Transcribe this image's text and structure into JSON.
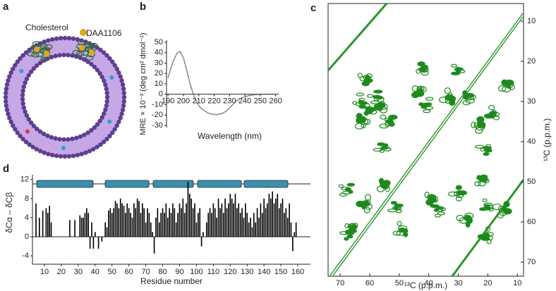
{
  "panel_labels": [
    "a",
    "b",
    "c",
    "d"
  ],
  "annotations": [
    "Cholesterol",
    "DAA1106"
  ],
  "chart_data": [
    {
      "type": "line",
      "x_label": "Wavelength (nm)",
      "y_label": "MRE × 10⁻³ (deg cm² dmol⁻¹)",
      "x": [
        190,
        192,
        194,
        196,
        198,
        200,
        202,
        204,
        206,
        208,
        210,
        212,
        214,
        216,
        218,
        220,
        222,
        224,
        226,
        228,
        230,
        232,
        234,
        236,
        238,
        240,
        242,
        244,
        246,
        248,
        250,
        252,
        254,
        256,
        258,
        260
      ],
      "values": [
        16,
        26,
        34,
        40,
        41,
        35,
        24,
        12,
        2,
        -6,
        -11,
        -14,
        -16,
        -18,
        -19,
        -19.5,
        -19.5,
        -19,
        -18,
        -16,
        -13,
        -10,
        -7,
        -5,
        -3.5,
        -2.5,
        -1.5,
        -1,
        -0.5,
        -0.3,
        0,
        0,
        0,
        0,
        0,
        0
      ],
      "color": "#555555",
      "xlim": [
        189,
        262
      ],
      "ylim": [
        -32,
        52
      ],
      "xticks": [
        190,
        200,
        210,
        220,
        230,
        240,
        250,
        260
      ],
      "yticks": [
        -30,
        -20,
        -10,
        0,
        10,
        20,
        30,
        40,
        50
      ]
    },
    {
      "type": "contour",
      "x_label": "¹³C (p.p.m.)",
      "y_label": "¹³C (p.p.m.)",
      "x": [
        63,
        60,
        62,
        58,
        61,
        56,
        55,
        54,
        43,
        40.5,
        42,
        33,
        30,
        26,
        23,
        20.5,
        18,
        13,
        68,
        66,
        61,
        51,
        49,
        39,
        36,
        30,
        27,
        20,
        21.5,
        15,
        67,
        20,
        55
      ],
      "y": [
        30,
        32,
        35,
        29,
        24,
        31,
        41.5,
        35,
        27,
        31,
        22,
        29,
        22,
        29,
        36,
        41.5,
        33,
        26,
        52,
        61,
        55.6,
        56.5,
        62,
        54,
        57,
        53,
        59,
        56,
        49.5,
        57,
        62.6,
        63.5,
        51
      ],
      "color": "#1e8a1e",
      "xlim": [
        74.1,
        7.9
      ],
      "ylim": [
        5.6,
        73.5
      ],
      "xticks": [
        70,
        60,
        50,
        40,
        30,
        20,
        10
      ],
      "yticks": [
        10,
        20,
        30,
        40,
        50,
        60,
        70
      ]
    },
    {
      "type": "bar",
      "x_label": "Residue number",
      "y_label": "δCα – δCβ",
      "x": [
        5,
        7,
        9,
        11,
        12,
        13,
        14,
        25,
        28,
        31,
        32,
        33,
        34,
        35,
        36,
        37,
        38,
        39,
        40,
        42,
        44,
        46,
        47,
        48,
        49,
        50,
        51,
        52,
        53,
        54,
        55,
        56,
        57,
        58,
        59,
        60,
        61,
        62,
        63,
        64,
        65,
        66,
        67,
        68,
        69,
        70,
        71,
        72,
        73,
        74,
        75,
        76,
        77,
        78,
        79,
        80,
        81,
        82,
        83,
        84,
        85,
        86,
        87,
        88,
        89,
        90,
        91,
        92,
        93,
        94,
        95,
        96,
        97,
        98,
        99,
        100,
        101,
        102,
        103,
        104,
        106,
        107,
        108,
        109,
        110,
        111,
        112,
        113,
        114,
        115,
        116,
        117,
        118,
        119,
        120,
        121,
        122,
        123,
        124,
        125,
        126,
        127,
        128,
        129,
        130,
        131,
        132,
        133,
        134,
        135,
        136,
        137,
        138,
        139,
        140,
        141,
        142,
        143,
        144,
        145,
        146,
        147,
        148,
        149,
        150,
        151,
        152,
        153,
        154,
        155,
        156,
        157,
        158,
        159
      ],
      "values": [
        7,
        4,
        5.5,
        6,
        5,
        6.5,
        3,
        3.5,
        3.5,
        4.5,
        4,
        4,
        5,
        6,
        5,
        -2.5,
        3,
        -2.5,
        1,
        -2.5,
        -1,
        3,
        2,
        5.5,
        6,
        5,
        6,
        7.5,
        7,
        6,
        8,
        7,
        6.5,
        5,
        7,
        6,
        5,
        4,
        7,
        6,
        8,
        7.5,
        5,
        7,
        6,
        3,
        6,
        5,
        3,
        1,
        -3.5,
        4,
        6,
        3,
        5,
        6,
        5,
        7,
        4,
        6,
        5,
        7,
        6,
        3,
        5,
        7,
        6,
        8,
        5,
        7,
        11.5,
        9,
        8,
        6,
        7,
        3,
        5,
        6,
        -2,
        1,
        3,
        5,
        6,
        5,
        7,
        6,
        4,
        8,
        6,
        7,
        5,
        8,
        6,
        7,
        9,
        8,
        7,
        9,
        6,
        7,
        5,
        6,
        4,
        7,
        5,
        3,
        4,
        2,
        5,
        3,
        6,
        4,
        7,
        5,
        8,
        6,
        7,
        9,
        8,
        9.5,
        7,
        8,
        9,
        6,
        7,
        8,
        5,
        6,
        4,
        7,
        3,
        -3,
        1,
        3
      ],
      "color": "#000000",
      "xlim": [
        2.9,
        167.5
      ],
      "ylim": [
        -5.75,
        13
      ],
      "xticks": [
        10,
        20,
        30,
        40,
        50,
        60,
        70,
        80,
        90,
        100,
        110,
        120,
        130,
        140,
        150,
        160
      ],
      "yticks": [
        -4,
        0,
        4,
        8,
        12
      ]
    }
  ]
}
